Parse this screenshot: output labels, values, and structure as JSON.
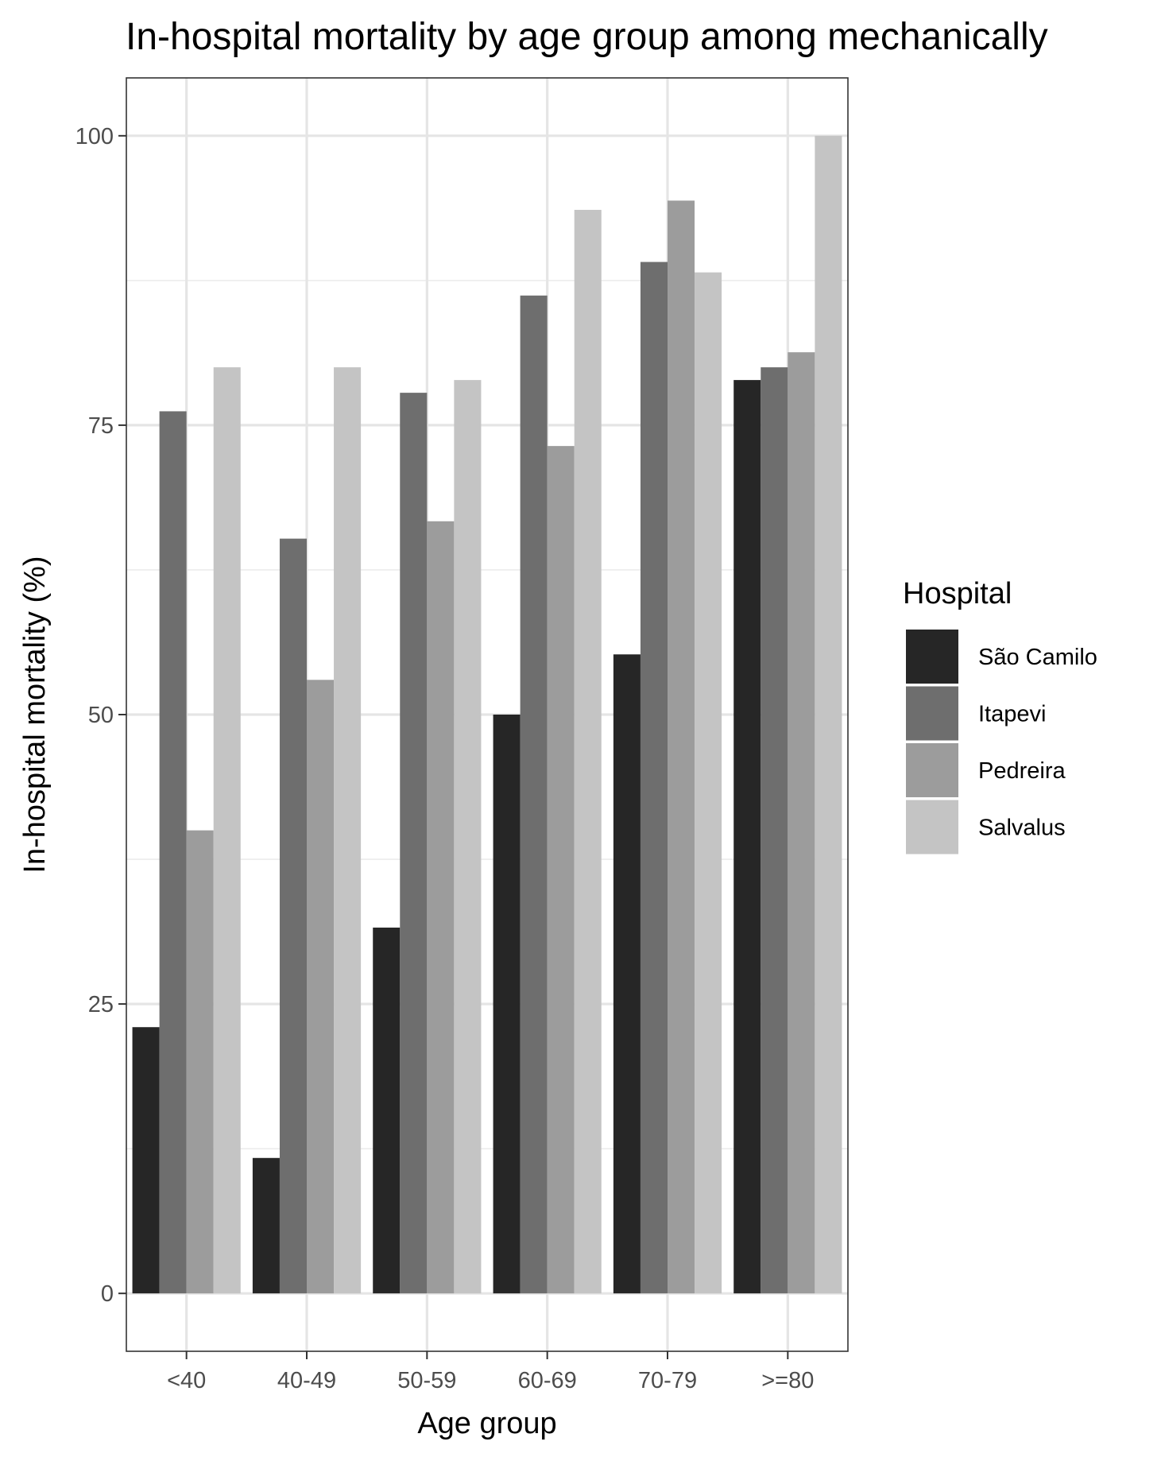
{
  "chart_data": {
    "type": "bar",
    "title": "In-hospital mortality by age group among mechanically",
    "xlabel": "Age group",
    "ylabel": "In-hospital mortality (%)",
    "ylim": [
      -5,
      105
    ],
    "yticks": [
      0,
      25,
      50,
      75,
      100
    ],
    "grid": true,
    "legend_position": "right",
    "legend_title": "Hospital",
    "categories": [
      "<40",
      "40-49",
      "50-59",
      "60-69",
      "70-79",
      ">=80"
    ],
    "series": [
      {
        "name": "São Camilo",
        "color": "#262626",
        "values": [
          23,
          11.7,
          31.6,
          50,
          55.2,
          78.9
        ]
      },
      {
        "name": "Itapevi",
        "color": "#6e6e6e",
        "values": [
          76.2,
          65.2,
          77.8,
          86.2,
          89.1,
          80
        ]
      },
      {
        "name": "Pedreira",
        "color": "#9c9c9c",
        "values": [
          40,
          53,
          66.7,
          73.2,
          94.4,
          81.3
        ]
      },
      {
        "name": "Salvalus",
        "color": "#c4c4c4",
        "values": [
          80,
          80,
          78.9,
          93.6,
          88.2,
          100
        ]
      }
    ]
  }
}
